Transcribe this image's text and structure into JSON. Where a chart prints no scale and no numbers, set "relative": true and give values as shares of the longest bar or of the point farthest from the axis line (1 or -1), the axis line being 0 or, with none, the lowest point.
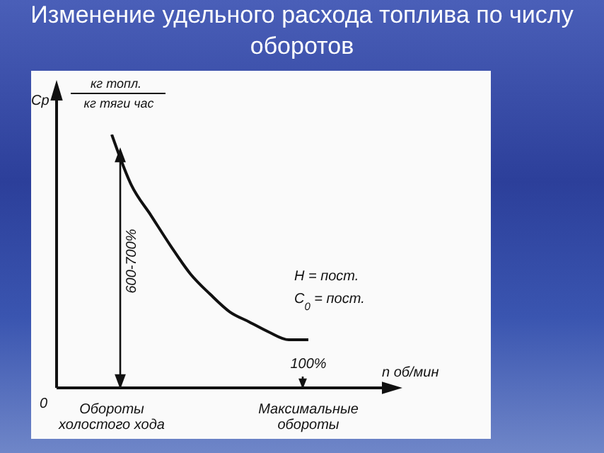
{
  "chart_data": {
    "type": "line",
    "title": "Изменение удельного расхода топлива по числу оборотов",
    "xlabel": "n об/мин",
    "ylabel": "Cp",
    "relative": true,
    "categories": [
      "Обороты холостого хода",
      null,
      null,
      null,
      null,
      null,
      null,
      null,
      null,
      null,
      "Максимальные обороты"
    ],
    "series": [
      {
        "color": "#111111",
        "values": [
          1,
          0.8,
          0.68,
          0.56,
          0.45,
          0.37,
          0.3,
          0.26,
          0.22,
          0.19,
          0.19
        ]
      }
    ],
    "annotations": [
      "кг топл.",
      "кг тяги час",
      "600-700%",
      "H = пост.",
      "C$_{0}$ = пост.",
      "100%",
      "0"
    ],
    "grid": false,
    "legend": false
  }
}
